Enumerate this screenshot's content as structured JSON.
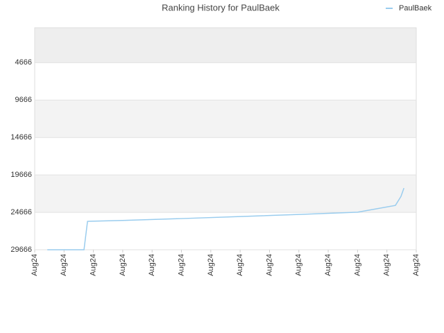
{
  "chart_data": {
    "type": "line",
    "title": "Ranking History for PaulBaek",
    "x": [
      0.43,
      1.68,
      1.8,
      3,
      5,
      7,
      9,
      11,
      12.29,
      12.48,
      12.58
    ],
    "series": [
      {
        "name": "PaulBaek",
        "color": "#99ccee",
        "values": [
          29666,
          29666,
          25870,
          25750,
          25500,
          25230,
          24950,
          24650,
          23740,
          22537,
          21426
        ]
      }
    ],
    "xlim": [
      0,
      13
    ],
    "xticks": [
      {
        "value": 0,
        "label": "Aug24"
      },
      {
        "value": 1,
        "label": "Aug24"
      },
      {
        "value": 2,
        "label": "Aug24"
      },
      {
        "value": 3,
        "label": "Aug24"
      },
      {
        "value": 4,
        "label": "Aug24"
      },
      {
        "value": 5,
        "label": "Aug24"
      },
      {
        "value": 6,
        "label": "Aug24"
      },
      {
        "value": 7,
        "label": "Aug24"
      },
      {
        "value": 8,
        "label": "Aug24"
      },
      {
        "value": 9,
        "label": "Aug24"
      },
      {
        "value": 10,
        "label": "Aug24"
      },
      {
        "value": 11,
        "label": "Aug24"
      },
      {
        "value": 12,
        "label": "Aug24"
      },
      {
        "value": 13,
        "label": "Aug24"
      }
    ],
    "ylim": [
      29666,
      0
    ],
    "yticks": [
      4666,
      9666,
      14666,
      19666,
      24666,
      29666
    ],
    "grid": true,
    "legend": "top-right"
  }
}
